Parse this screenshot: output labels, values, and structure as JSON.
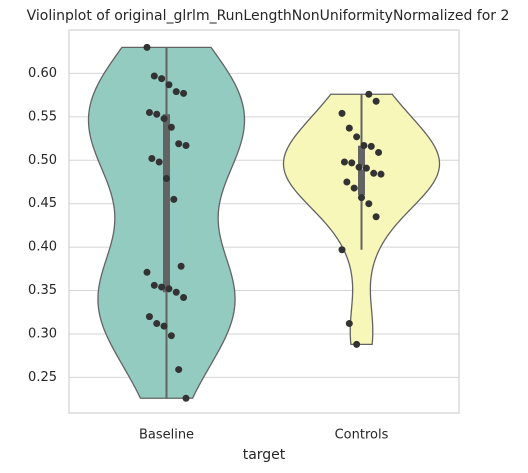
{
  "chart_data": {
    "type": "violin",
    "title": "Violinplot of original_glrlm_RunLengthNonUniformityNormalized for 2",
    "x_label": "target",
    "categories": [
      "Baseline",
      "Controls"
    ],
    "series": [
      {
        "name": "Baseline",
        "color": "#94cbc0",
        "values": [
          0.63,
          0.597,
          0.594,
          0.587,
          0.579,
          0.577,
          0.555,
          0.553,
          0.548,
          0.538,
          0.519,
          0.517,
          0.502,
          0.498,
          0.479,
          0.455,
          0.378,
          0.371,
          0.356,
          0.354,
          0.352,
          0.348,
          0.342,
          0.32,
          0.312,
          0.309,
          0.298,
          0.259,
          0.226
        ]
      },
      {
        "name": "Controls",
        "color": "#f7f7b9",
        "values": [
          0.576,
          0.568,
          0.554,
          0.537,
          0.527,
          0.517,
          0.516,
          0.509,
          0.498,
          0.497,
          0.492,
          0.491,
          0.485,
          0.484,
          0.475,
          0.468,
          0.457,
          0.45,
          0.435,
          0.397,
          0.312,
          0.288
        ]
      }
    ],
    "ylim": [
      0.209,
      0.65
    ],
    "yticks": [
      0.25,
      {
        "value": 0.3,
        "label": "0.30"
      },
      0.35,
      {
        "value": 0.4,
        "label": "0.40"
      },
      0.45,
      {
        "value": 0.5,
        "label": "0.50"
      },
      0.55,
      {
        "value": 0.6,
        "label": "0.60"
      }
    ],
    "grid": true
  }
}
